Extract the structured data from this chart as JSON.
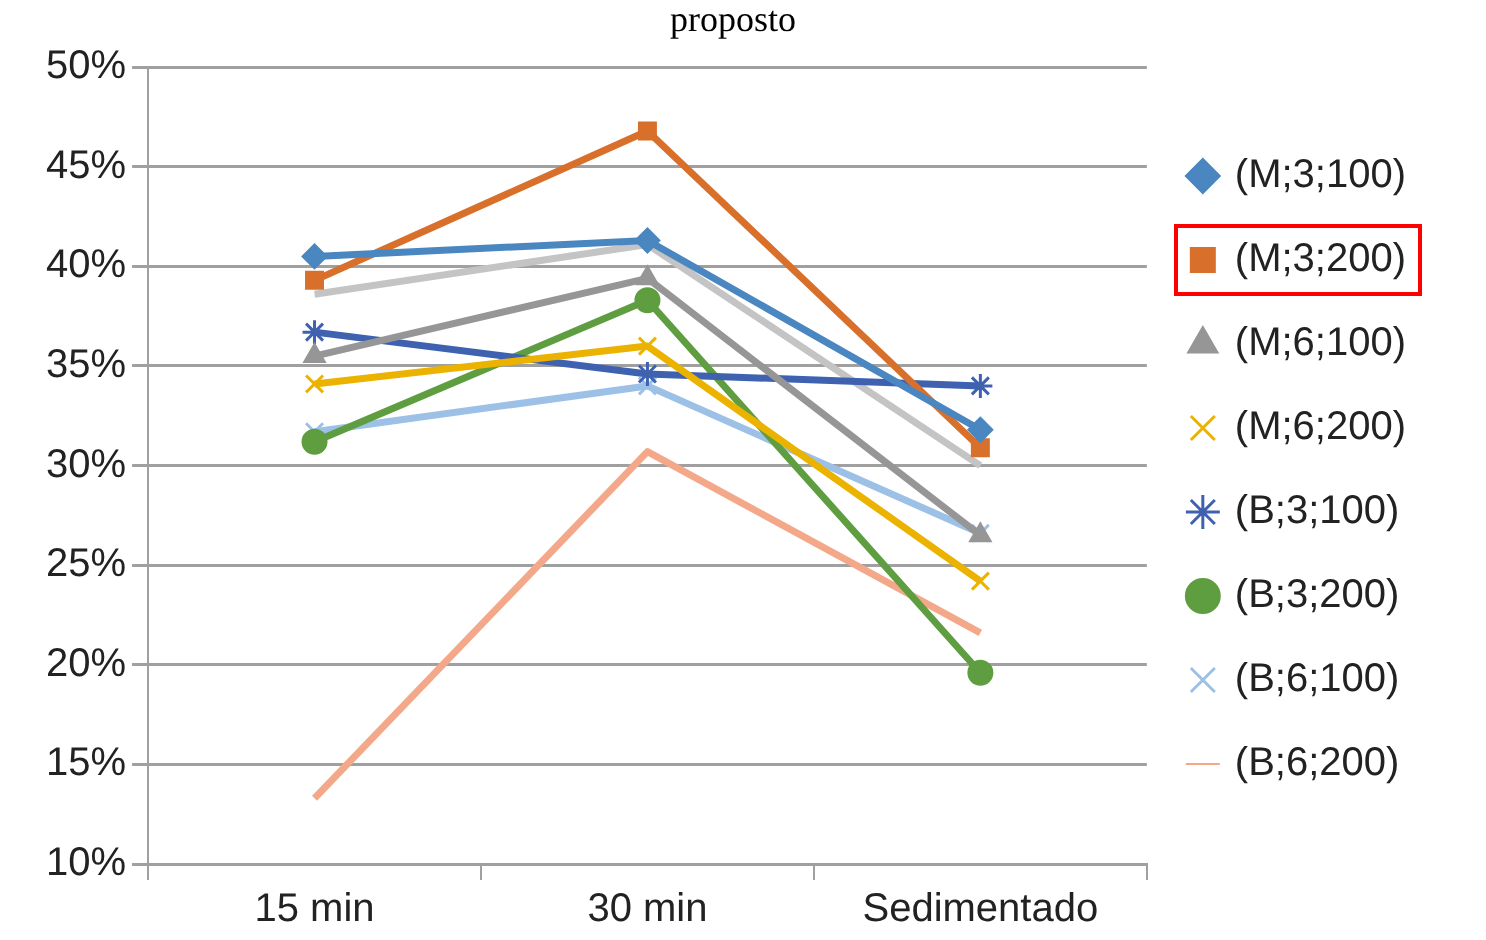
{
  "chart_data": {
    "type": "line",
    "title": "proposto",
    "categories": [
      "15 min",
      "30 min",
      "Sedimentado"
    ],
    "series": [
      {
        "name": "(M;3;100)",
        "color": "#4a86c0",
        "marker": "diamond",
        "values": [
          40.5,
          41.3,
          31.8
        ]
      },
      {
        "name": "(M;3;200)",
        "color": "#d8702c",
        "marker": "square",
        "values": [
          39.3,
          46.8,
          30.9
        ]
      },
      {
        "name": "(M;6;100)",
        "color": "#969696",
        "marker": "triangle",
        "values": [
          35.5,
          39.4,
          26.5
        ]
      },
      {
        "name": "(M;6;200)",
        "color": "#ebb300",
        "marker": "cross",
        "values": [
          34.1,
          36.0,
          24.2
        ]
      },
      {
        "name": "(B;3;100)",
        "color": "#3e62b0",
        "marker": "cross",
        "values": [
          36.7,
          34.6,
          34.0
        ]
      },
      {
        "name": "(B;3;200)",
        "color": "#5e9e40",
        "marker": "circle",
        "values": [
          31.2,
          38.3,
          19.6
        ]
      },
      {
        "name": "(B;6;100)",
        "color": "#9dc0e6",
        "marker": "cross",
        "values": [
          31.7,
          34.0,
          26.6
        ]
      },
      {
        "name": "(B;6;200)",
        "color": "#f4a88a",
        "marker": "none",
        "values": [
          13.3,
          30.7,
          21.6
        ]
      },
      {
        "color": "#c4c4c4",
        "marker": "none",
        "values": [
          38.6,
          41.1,
          30.0
        ]
      }
    ],
    "ylim": [
      10,
      50
    ],
    "yticks": [
      {
        "value": 10,
        "label": "10%"
      },
      {
        "value": 15,
        "label": "15%"
      },
      {
        "value": 20,
        "label": "20%"
      },
      {
        "value": 25,
        "label": "25%"
      },
      {
        "value": 30,
        "label": "30%"
      },
      {
        "value": 35,
        "label": "35%"
      },
      {
        "value": 40,
        "label": "40%"
      },
      {
        "value": 45,
        "label": "45%"
      },
      {
        "value": 50,
        "label": "50%"
      }
    ],
    "grid": "y",
    "legend": "right"
  }
}
